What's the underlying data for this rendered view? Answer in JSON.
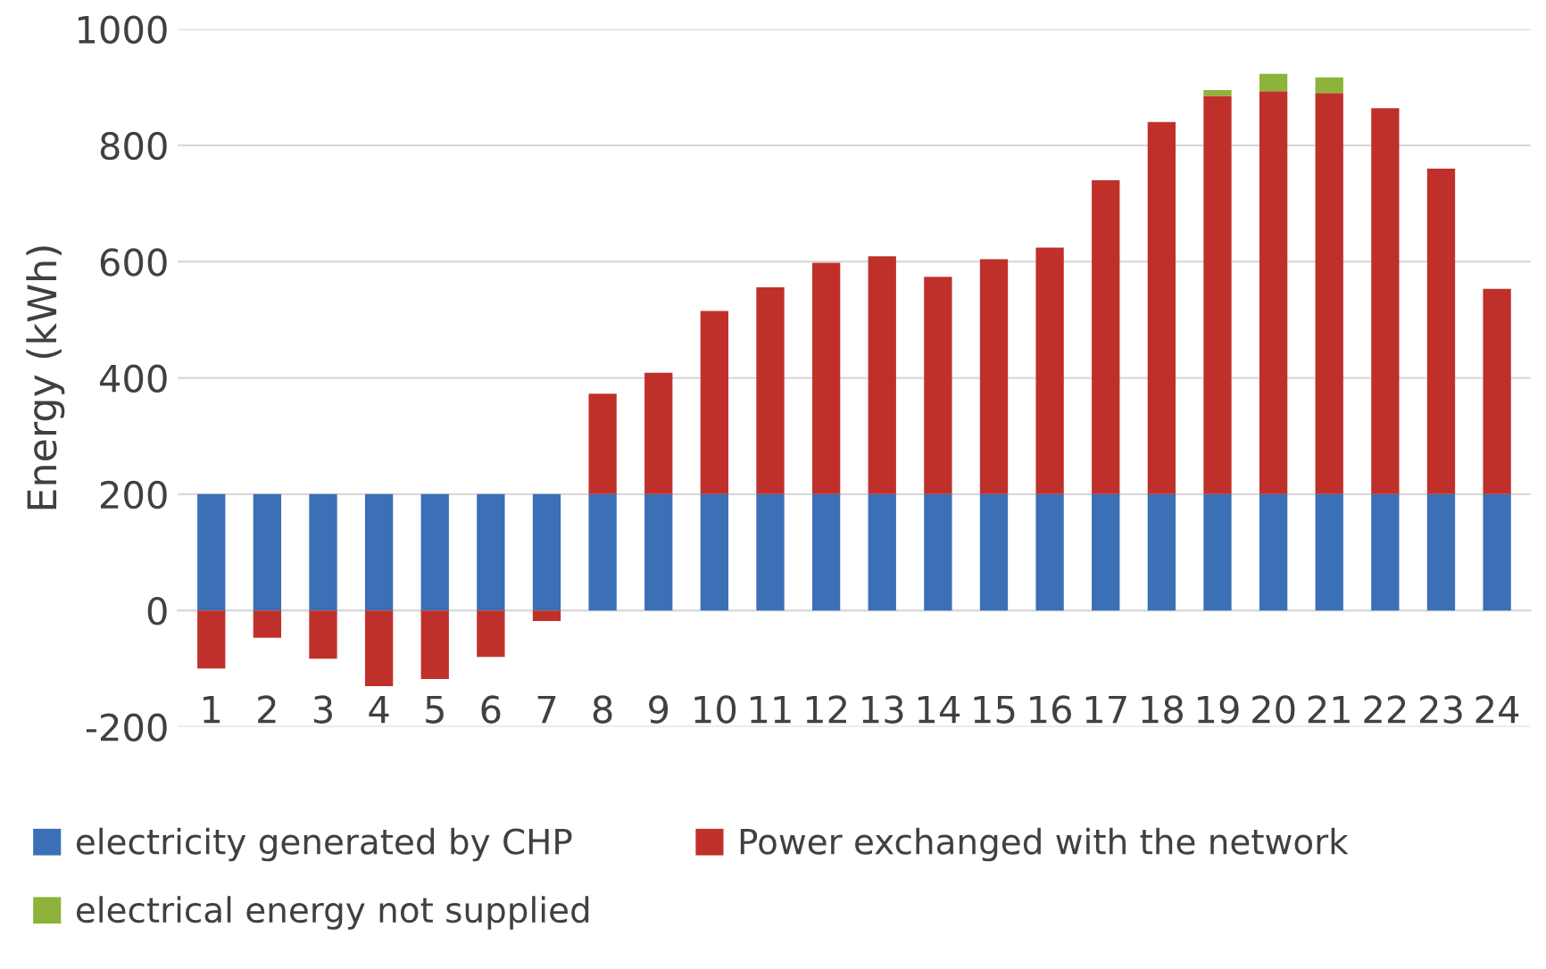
{
  "chart_data": {
    "type": "bar",
    "stacked": true,
    "ylabel": "Energy (kWh)",
    "categories": [
      "1",
      "2",
      "3",
      "4",
      "5",
      "6",
      "7",
      "8",
      "9",
      "10",
      "11",
      "12",
      "13",
      "14",
      "15",
      "16",
      "17",
      "18",
      "19",
      "20",
      "21",
      "22",
      "23",
      "24"
    ],
    "series": [
      {
        "name": "electricity generated by CHP",
        "color": "#3b6fb6",
        "values": [
          200,
          200,
          200,
          200,
          200,
          200,
          200,
          200,
          200,
          200,
          200,
          200,
          200,
          200,
          200,
          200,
          200,
          200,
          200,
          200,
          200,
          200,
          200,
          200
        ]
      },
      {
        "name": "Power exchanged with the network",
        "color": "#c0302b",
        "values": [
          -100,
          -47,
          -83,
          -130,
          -118,
          -80,
          -18,
          173,
          209,
          315,
          356,
          398,
          409,
          374,
          404,
          424,
          540,
          640,
          685,
          693,
          690,
          664,
          560,
          353
        ]
      },
      {
        "name": "electrical energy not supplied",
        "color": "#8db33a",
        "values": [
          null,
          null,
          null,
          null,
          null,
          null,
          null,
          null,
          null,
          null,
          null,
          null,
          null,
          null,
          null,
          null,
          null,
          null,
          10,
          30,
          27,
          null,
          null,
          null
        ]
      }
    ],
    "ylim": [
      -200,
      1000
    ],
    "yticks": [
      {
        "value": -200,
        "label": "-200"
      },
      {
        "value": 0,
        "label": "0"
      },
      {
        "value": 200,
        "label": "200"
      },
      {
        "value": 400,
        "label": "400"
      },
      {
        "value": 600,
        "label": "600"
      },
      {
        "value": 800,
        "label": "800"
      },
      {
        "value": 1000,
        "label": "1000"
      }
    ],
    "grid": "y",
    "legend": "bottom"
  }
}
